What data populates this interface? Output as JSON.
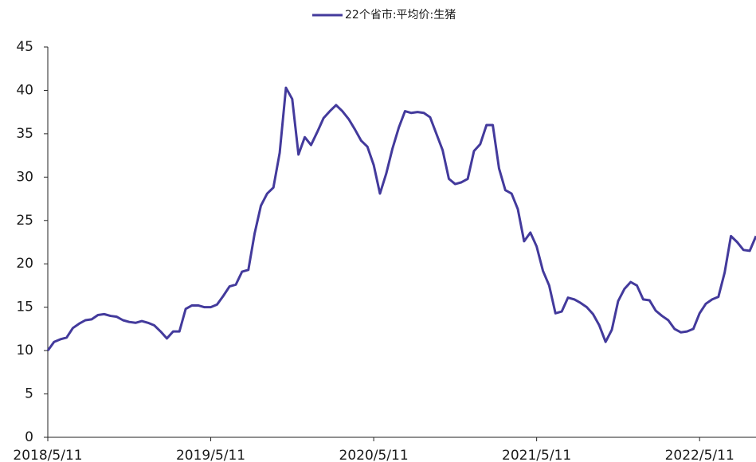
{
  "chart_data": {
    "type": "line",
    "categories": [
      "2018/5/11",
      null,
      null,
      null,
      null,
      null,
      null,
      null,
      null,
      null,
      null,
      null,
      null,
      null,
      null,
      null,
      null,
      null,
      null,
      null,
      null,
      null,
      null,
      null,
      null,
      null,
      "2019/5/11",
      null,
      null,
      null,
      null,
      null,
      null,
      null,
      null,
      null,
      null,
      null,
      null,
      null,
      null,
      null,
      null,
      null,
      null,
      null,
      null,
      null,
      null,
      null,
      null,
      null,
      "2020/5/11",
      null,
      null,
      null,
      null,
      null,
      null,
      null,
      null,
      null,
      null,
      null,
      null,
      null,
      null,
      null,
      null,
      null,
      null,
      null,
      null,
      null,
      null,
      null,
      null,
      null,
      "2021/5/11",
      null,
      null,
      null,
      null,
      null,
      null,
      null,
      null,
      null,
      null,
      null,
      null,
      null,
      null,
      null,
      null,
      null,
      null,
      null,
      null,
      null,
      null,
      null,
      null,
      null,
      "2022/5/11",
      null,
      null,
      null,
      null,
      null,
      null,
      null,
      null,
      null
    ],
    "series": [
      {
        "name": "22个省市:平均价:生猪",
        "color": "#433a9c",
        "values": [
          10,
          11.0,
          11.3,
          11.5,
          12.6,
          13.1,
          13.5,
          13.6,
          14.1,
          14.2,
          14.0,
          13.9,
          13.5,
          13.3,
          13.2,
          13.4,
          13.2,
          12.9,
          12.2,
          11.4,
          12.2,
          12.2,
          14.8,
          15.2,
          15.2,
          15.0,
          15.0,
          15.3,
          16.3,
          17.4,
          17.6,
          19.1,
          19.3,
          23.5,
          26.7,
          28.1,
          28.8,
          32.8,
          40.3,
          39.0,
          32.6,
          34.6,
          33.7,
          35.2,
          36.8,
          37.6,
          38.3,
          37.6,
          36.7,
          35.5,
          34.2,
          33.5,
          31.4,
          28.1,
          30.4,
          33.3,
          35.7,
          37.6,
          37.4,
          37.5,
          37.4,
          36.9,
          35.0,
          33.1,
          29.8,
          29.2,
          29.4,
          29.8,
          33.0,
          33.8,
          36.0,
          36.0,
          31.0,
          28.5,
          28.1,
          26.3,
          22.6,
          23.6,
          22.0,
          19.2,
          17.5,
          14.3,
          14.5,
          16.1,
          15.9,
          15.5,
          15.0,
          14.2,
          12.9,
          11.0,
          12.4,
          15.7,
          17.1,
          17.9,
          17.5,
          15.9,
          15.8,
          14.6,
          14.0,
          13.5,
          12.5,
          12.1,
          12.2,
          12.5,
          14.3,
          15.4,
          15.9,
          16.2,
          19.0,
          23.2,
          22.5,
          21.6,
          21.5,
          23.2
        ]
      }
    ],
    "ylim": [
      0,
      45
    ],
    "yticks": [
      0,
      5,
      10,
      15,
      20,
      25,
      30,
      35,
      40,
      45
    ],
    "grid": false,
    "legend": "top"
  }
}
